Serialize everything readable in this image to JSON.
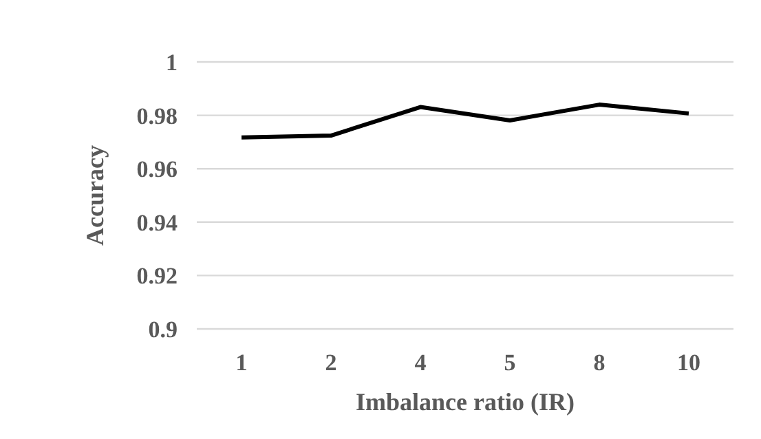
{
  "chart_data": {
    "type": "line",
    "xlabel": "Imbalance ratio (IR)",
    "ylabel": "Accuracy",
    "categories": [
      "1",
      "2",
      "4",
      "5",
      "8",
      "10"
    ],
    "series": [
      {
        "color": "#000000",
        "values": [
          0.9717,
          0.9724,
          0.9831,
          0.9781,
          0.984,
          0.9807
        ]
      }
    ],
    "ylim": [
      0.9,
      1
    ],
    "yticks": [
      {
        "value": 0.9,
        "label": "0.9"
      },
      {
        "value": 0.92,
        "label": "0.92"
      },
      {
        "value": 0.94,
        "label": "0.94"
      },
      {
        "value": 0.96,
        "label": "0.96"
      },
      {
        "value": 0.98,
        "label": "0.98"
      },
      {
        "value": 1,
        "label": "1"
      }
    ],
    "grid": "y",
    "marker": "none",
    "line_style": "solid"
  }
}
